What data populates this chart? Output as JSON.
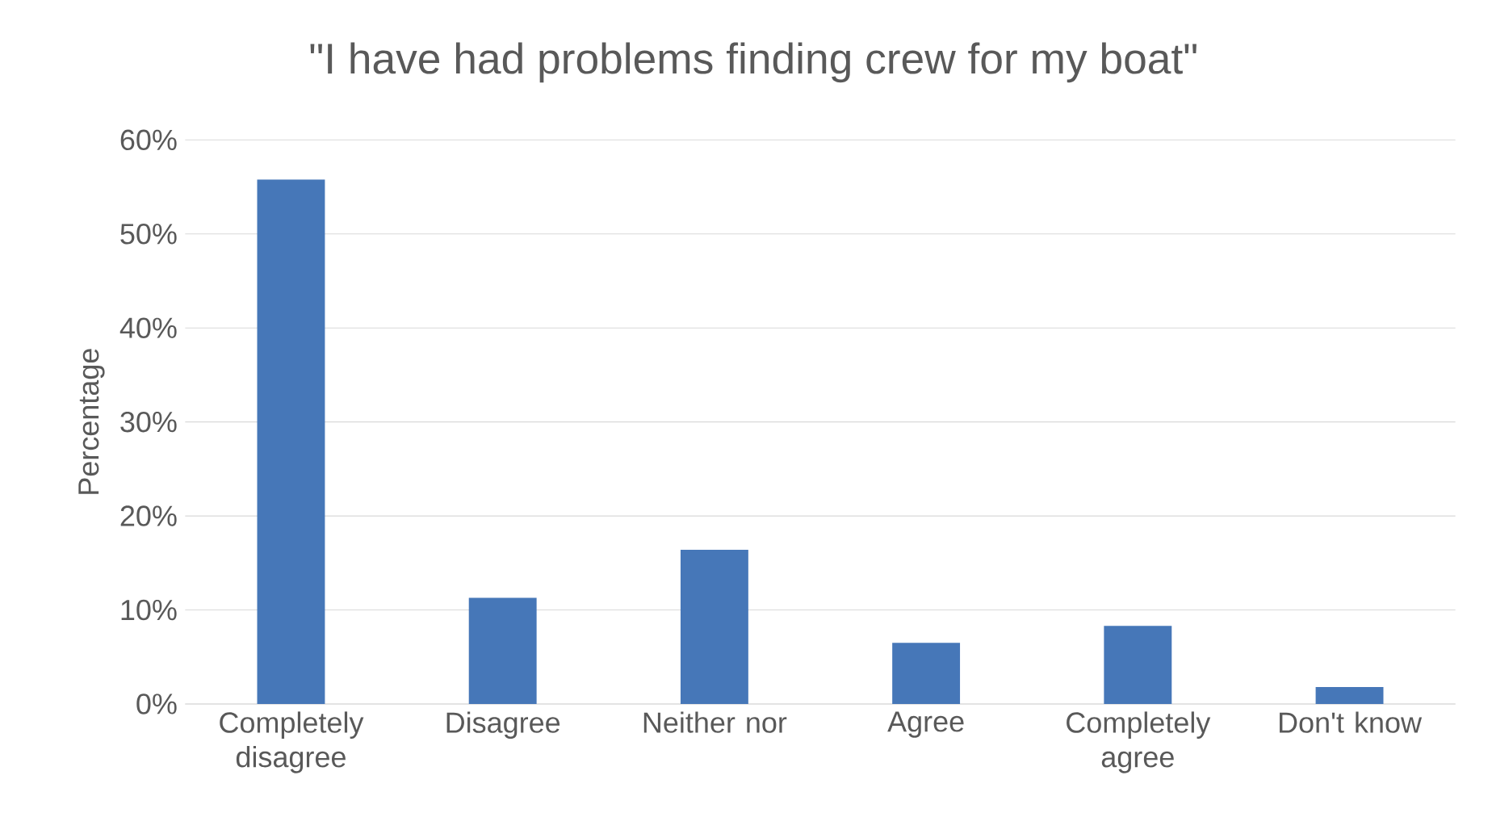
{
  "chart_data": {
    "type": "bar",
    "title": "\"I have had problems finding crew for my boat\"",
    "ylabel": "Percentage",
    "categories": [
      "Completely disagree",
      "Disagree",
      "Neither nor",
      "Agree",
      "Completely agree",
      "Don't know"
    ],
    "values": [
      55.8,
      11.3,
      16.4,
      6.5,
      8.3,
      1.8
    ],
    "color": "#4677b8",
    "ylim": [
      0,
      60
    ],
    "yticks": [
      {
        "value": 0,
        "label": "0%"
      },
      {
        "value": 10,
        "label": "10%"
      },
      {
        "value": 20,
        "label": "20%"
      },
      {
        "value": 30,
        "label": "30%"
      },
      {
        "value": 40,
        "label": "40%"
      },
      {
        "value": 50,
        "label": "50%"
      },
      {
        "value": 60,
        "label": "60%"
      }
    ],
    "grid": "y"
  }
}
